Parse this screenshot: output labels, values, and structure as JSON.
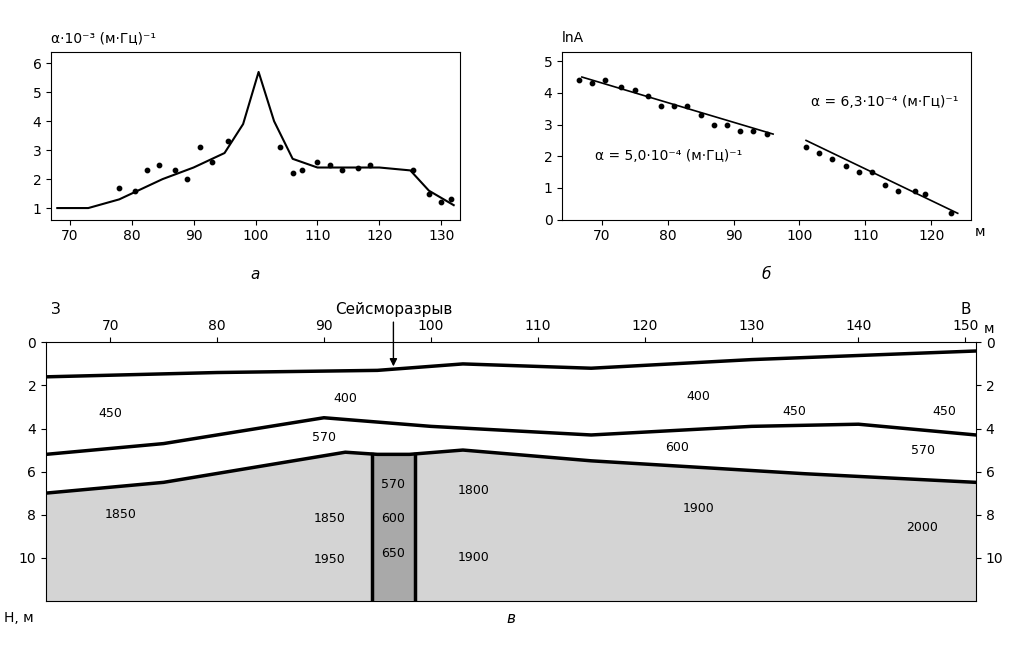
{
  "chart_data": [
    {
      "type": "line",
      "panel_label": "а",
      "ylabel": "α·10⁻³ (м·Гц)⁻¹",
      "x": [
        68,
        73,
        78,
        85,
        90,
        95,
        98,
        100.5,
        103,
        106,
        110,
        115,
        120,
        125,
        128,
        132
      ],
      "values": [
        1.0,
        1.0,
        1.3,
        2.0,
        2.4,
        2.9,
        3.9,
        5.7,
        4.0,
        2.7,
        2.4,
        2.4,
        2.4,
        2.3,
        1.6,
        1.1
      ],
      "points": {
        "x": [
          78,
          80.5,
          82.5,
          84.5,
          87,
          89,
          91,
          93,
          95.5,
          104,
          106,
          107.5,
          110,
          112,
          114,
          116.5,
          118.5,
          125.5,
          128,
          130,
          131.5
        ],
        "values": [
          1.7,
          1.6,
          2.3,
          2.5,
          2.3,
          2.0,
          3.1,
          2.6,
          3.3,
          3.1,
          2.2,
          2.3,
          2.6,
          2.5,
          2.3,
          2.4,
          2.5,
          2.3,
          1.5,
          1.2,
          1.3
        ]
      },
      "xlim": [
        67,
        133
      ],
      "xticks": [
        70,
        80,
        90,
        100,
        110,
        120,
        130
      ],
      "ylim": [
        0.6,
        6.4
      ],
      "yticks": [
        1,
        2,
        3,
        4,
        5,
        6
      ]
    },
    {
      "type": "scatter",
      "panel_label": "б",
      "ylabel": "lnA",
      "xlabel": "м",
      "x": [
        66.5,
        68.5,
        70.5,
        73,
        75,
        77,
        79,
        81,
        83,
        85,
        87,
        89,
        91,
        93,
        95,
        101,
        103,
        105,
        107,
        109,
        111,
        113,
        115,
        117.5,
        119,
        123
      ],
      "values": [
        4.4,
        4.3,
        4.4,
        4.2,
        4.1,
        3.9,
        3.6,
        3.6,
        3.6,
        3.3,
        3.0,
        3.0,
        2.8,
        2.8,
        2.7,
        2.3,
        2.1,
        1.9,
        1.7,
        1.5,
        1.5,
        1.1,
        0.9,
        0.9,
        0.8,
        0.2
      ],
      "fits": [
        {
          "x": [
            67,
            96
          ],
          "values": [
            4.5,
            2.7
          ],
          "label": "α = 5,0·10⁻⁴ (м·Гц)⁻¹"
        },
        {
          "x": [
            101,
            124
          ],
          "values": [
            2.5,
            0.2
          ],
          "label": "α = 6,3·10⁻⁴ (м·Гц)⁻¹"
        }
      ],
      "xlim": [
        64,
        126
      ],
      "xticks": [
        70,
        80,
        90,
        100,
        110,
        120
      ],
      "ylim": [
        0,
        5.3
      ],
      "yticks": [
        0,
        1,
        2,
        3,
        4,
        5
      ]
    },
    {
      "type": "section",
      "panel_label": "в",
      "ylabel": "Н, м",
      "xlabel": "м",
      "west": "З",
      "east": "В",
      "fault": {
        "label": "Сейсморазрыв",
        "x": [
          94.5,
          98.5
        ]
      },
      "boundaries": [
        {
          "x": [
            64,
            80,
            95,
            103,
            115,
            130,
            151
          ],
          "depth": [
            1.6,
            1.4,
            1.3,
            1.0,
            1.2,
            0.8,
            0.4
          ]
        },
        {
          "x": [
            64,
            75,
            90,
            100,
            115,
            130,
            140,
            151
          ],
          "depth": [
            5.2,
            4.7,
            3.5,
            3.9,
            4.3,
            3.9,
            3.8,
            4.3
          ]
        },
        {
          "x": [
            64,
            75,
            92,
            95,
            98,
            103,
            115,
            135,
            151
          ],
          "depth": [
            7.0,
            6.5,
            5.1,
            5.2,
            5.2,
            5.0,
            5.5,
            6.1,
            6.5
          ]
        }
      ],
      "velocities": [
        {
          "value": 400,
          "x": 92,
          "depth": 2.6
        },
        {
          "value": 400,
          "x": 125,
          "depth": 2.5
        },
        {
          "value": 450,
          "x": 70,
          "depth": 3.3
        },
        {
          "value": 450,
          "x": 134,
          "depth": 3.2
        },
        {
          "value": 450,
          "x": 148,
          "depth": 3.2
        },
        {
          "value": 570,
          "x": 90,
          "depth": 4.4
        },
        {
          "value": 600,
          "x": 123,
          "depth": 4.9
        },
        {
          "value": 570,
          "x": 146,
          "depth": 5.0
        },
        {
          "value": 1850,
          "x": 71,
          "depth": 8.0
        },
        {
          "value": 1850,
          "x": 90.5,
          "depth": 8.2
        },
        {
          "value": 570,
          "x": 96.5,
          "depth": 6.6
        },
        {
          "value": 600,
          "x": 96.5,
          "depth": 8.2
        },
        {
          "value": 650,
          "x": 96.5,
          "depth": 9.8
        },
        {
          "value": 1800,
          "x": 104,
          "depth": 6.9
        },
        {
          "value": 1900,
          "x": 125,
          "depth": 7.7
        },
        {
          "value": 2000,
          "x": 146,
          "depth": 8.6
        },
        {
          "value": 1950,
          "x": 90.5,
          "depth": 10.1
        },
        {
          "value": 1900,
          "x": 104,
          "depth": 10.0
        }
      ],
      "xlim": [
        64,
        151
      ],
      "xticks": [
        70,
        80,
        90,
        100,
        110,
        120,
        130,
        140,
        150
      ],
      "ylim": [
        12,
        0
      ],
      "yticks": [
        0,
        2,
        4,
        6,
        8,
        10
      ]
    }
  ]
}
